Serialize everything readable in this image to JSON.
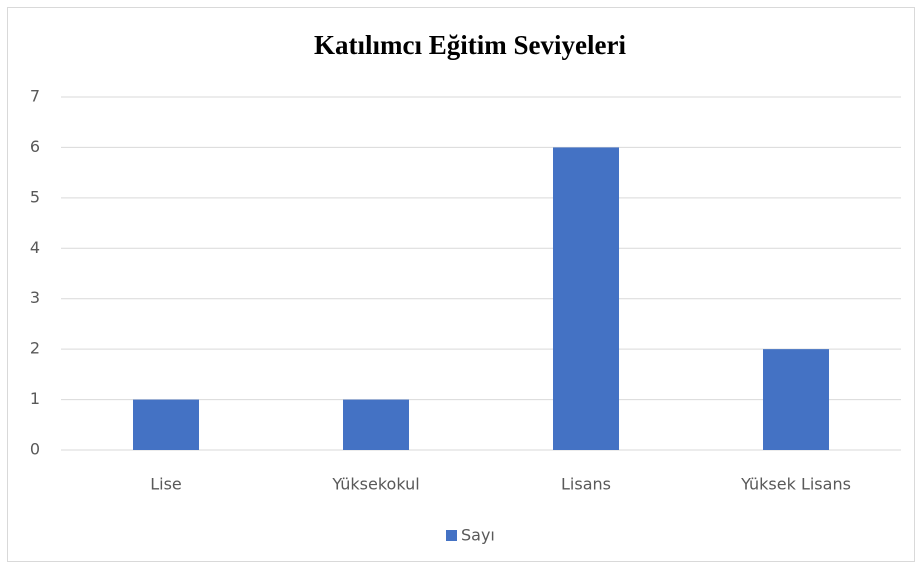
{
  "chart_data": {
    "type": "bar",
    "title": "Katılımcı Eğitim Seviyeleri",
    "categories": [
      "Lise",
      "Yüksekokul",
      "Lisans",
      "Yüksek Lisans"
    ],
    "series": [
      {
        "name": "Sayı",
        "color": "#4472c4",
        "values": [
          1,
          1,
          6,
          2
        ]
      }
    ],
    "ylim": [
      0,
      7
    ],
    "yticks": [
      0,
      1,
      2,
      3,
      4,
      5,
      6,
      7
    ],
    "grid": true,
    "legend": "bottom"
  }
}
